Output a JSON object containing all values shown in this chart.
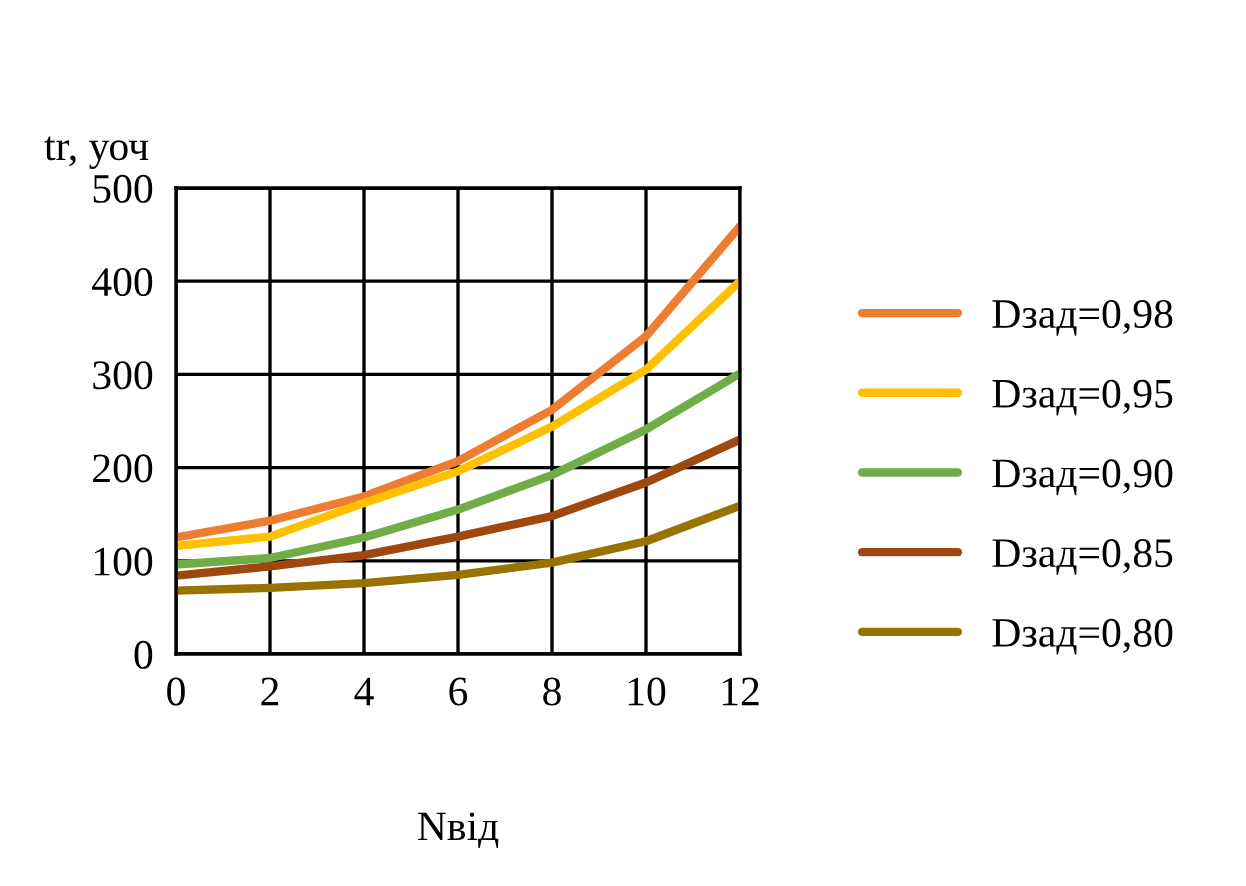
{
  "chart_data": {
    "type": "line",
    "ylabel": "tr, уоч",
    "xlabel": "Nвід",
    "x": [
      0,
      2,
      4,
      6,
      8,
      10,
      12
    ],
    "series": [
      {
        "name": "Dзад=0,98",
        "color": "#ed7d31",
        "values": [
          125,
          143,
          169,
          207,
          262,
          341,
          459
        ]
      },
      {
        "name": "Dзад=0,95",
        "color": "#ffc000",
        "values": [
          116,
          126,
          162,
          196,
          244,
          305,
          400
        ]
      },
      {
        "name": "Dзад=0,90",
        "color": "#70ad47",
        "values": [
          96,
          103,
          125,
          155,
          192,
          241,
          301
        ]
      },
      {
        "name": "Dзад=0,85",
        "color": "#9e480e",
        "values": [
          84,
          94,
          106,
          126,
          148,
          184,
          230
        ]
      },
      {
        "name": "Dзад=0,80",
        "color": "#997300",
        "values": [
          68,
          71,
          76,
          85,
          98,
          121,
          159
        ]
      }
    ],
    "xlim": [
      0,
      12
    ],
    "xticks": [
      0,
      2,
      4,
      6,
      8,
      10,
      12
    ],
    "ylim": [
      0,
      500
    ],
    "yticks": [
      0,
      100,
      200,
      300,
      400,
      500
    ],
    "grid": true,
    "legend": "right",
    "marker": "none",
    "line_style": "solid"
  }
}
